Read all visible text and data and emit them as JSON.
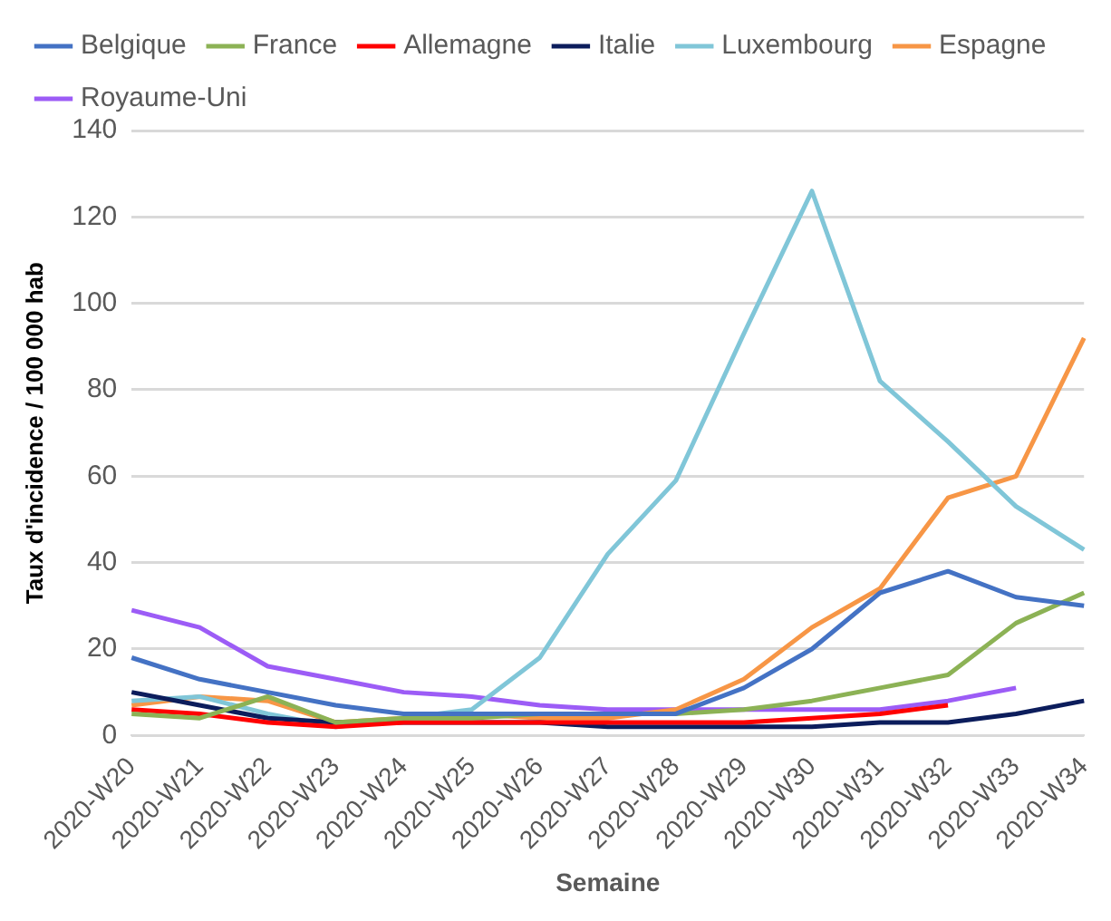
{
  "chart_data": {
    "type": "line",
    "xlabel": "Semaine",
    "ylabel": "Taux d'incidence / 100 000 hab",
    "categories": [
      "2020-W20",
      "2020-W21",
      "2020-W22",
      "2020-W23",
      "2020-W24",
      "2020-W25",
      "2020-W26",
      "2020-W27",
      "2020-W28",
      "2020-W29",
      "2020-W30",
      "2020-W31",
      "2020-W32",
      "2020-W33",
      "2020-W34"
    ],
    "series": [
      {
        "name": "Belgique",
        "color": "#4472c4",
        "values": [
          18,
          13,
          10,
          7,
          5,
          5,
          5,
          5,
          5,
          11,
          20,
          33,
          38,
          32,
          30
        ]
      },
      {
        "name": "France",
        "color": "#8cb255",
        "values": [
          5,
          4,
          9,
          3,
          4,
          4,
          5,
          5,
          5,
          6,
          8,
          11,
          14,
          26,
          33
        ]
      },
      {
        "name": "Allemagne",
        "color": "#ff0000",
        "values": [
          6,
          5,
          3,
          2,
          3,
          3,
          3,
          3,
          3,
          3,
          4,
          5,
          7,
          null,
          null
        ]
      },
      {
        "name": "Italie",
        "color": "#0c1d5c",
        "values": [
          10,
          7,
          4,
          3,
          3,
          3,
          3,
          2,
          2,
          2,
          2,
          3,
          3,
          5,
          8
        ]
      },
      {
        "name": "Luxembourg",
        "color": "#80c6d8",
        "values": [
          8,
          9,
          5,
          2,
          4,
          6,
          18,
          42,
          59,
          93,
          126,
          82,
          68,
          53,
          43
        ]
      },
      {
        "name": "Espagne",
        "color": "#f79646",
        "values": [
          7,
          9,
          8,
          3,
          4,
          5,
          4,
          4,
          6,
          13,
          25,
          34,
          55,
          60,
          92
        ]
      },
      {
        "name": "Royaume-Uni",
        "color": "#9c5cf6",
        "values": [
          29,
          25,
          16,
          13,
          10,
          9,
          7,
          6,
          6,
          6,
          6,
          6,
          8,
          11,
          null
        ]
      }
    ],
    "ylim": [
      0,
      140
    ],
    "yticks": [
      0,
      20,
      40,
      60,
      80,
      100,
      120,
      140
    ],
    "grid": "y",
    "legend": "top",
    "marker": "none",
    "line_style": "solid"
  }
}
